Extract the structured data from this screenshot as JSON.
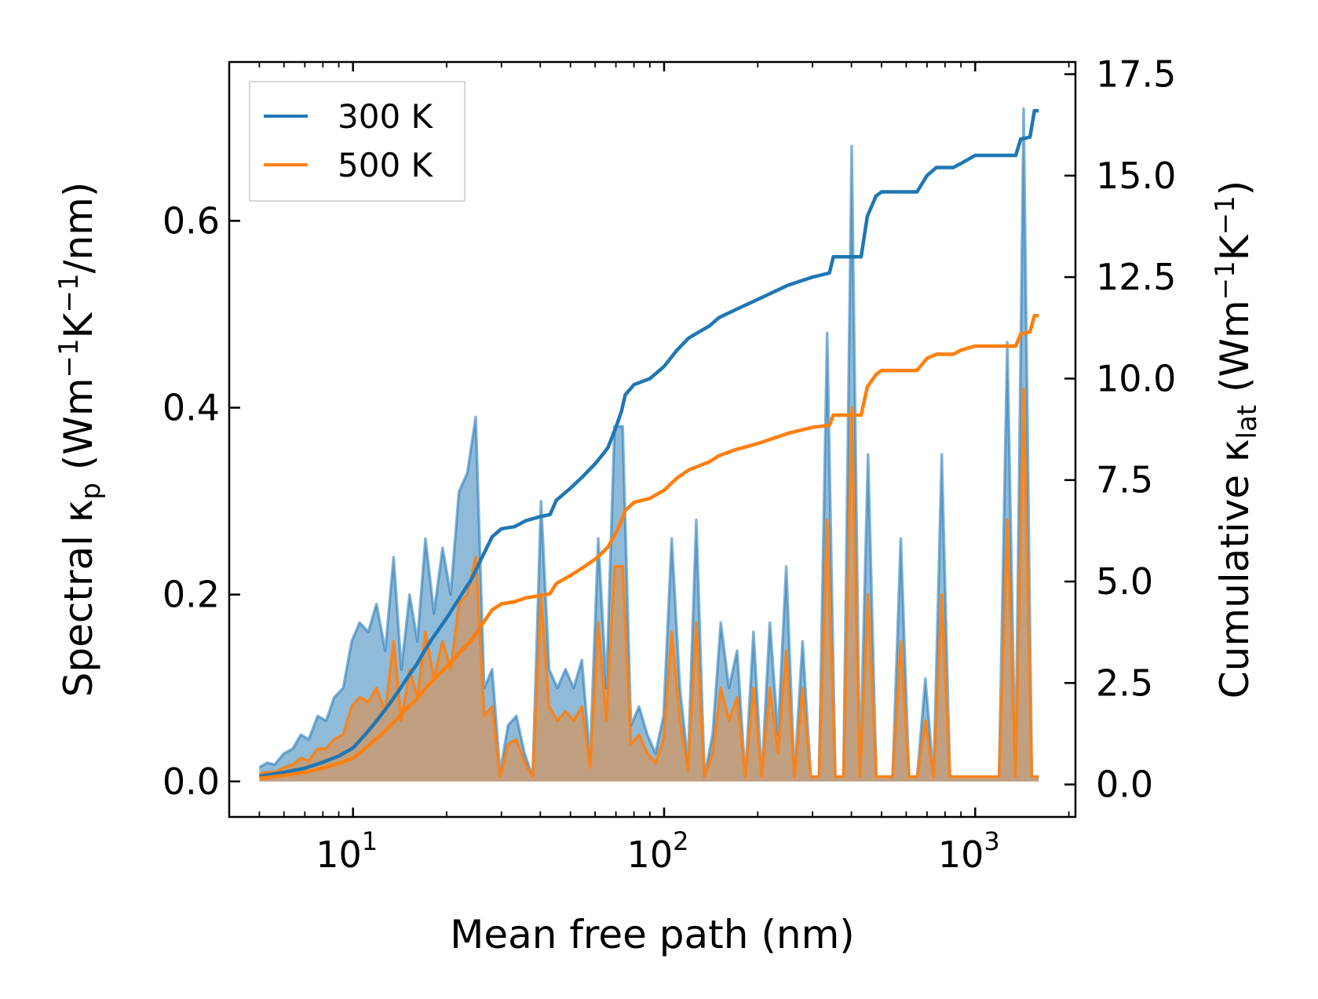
{
  "chart_data": {
    "type": "line",
    "xlabel": "Mean free path (nm)",
    "ylabel_left": "Spectral κp (Wm⁻¹K⁻¹/nm)",
    "ylabel_right": "Cumulative κlat (Wm⁻¹K⁻¹)",
    "xscale": "log",
    "xlim": [
      4.0,
      2100
    ],
    "ylim_left": [
      -0.038,
      0.77
    ],
    "ylim_right": [
      -0.8,
      17.8
    ],
    "x_ticks": [
      10,
      100,
      1000
    ],
    "x_ticklabels": [
      {
        "base": "10",
        "exp": "1"
      },
      {
        "base": "10",
        "exp": "2"
      },
      {
        "base": "10",
        "exp": "3"
      }
    ],
    "y_ticks_left": [
      0.0,
      0.2,
      0.4,
      0.6
    ],
    "y_ticklabels_left": [
      "0.0",
      "0.2",
      "0.4",
      "0.6"
    ],
    "y_ticks_right": [
      0.0,
      2.5,
      5.0,
      7.5,
      10.0,
      12.5,
      15.0,
      17.5
    ],
    "y_ticklabels_right": [
      "0.0",
      "2.5",
      "5.0",
      "7.5",
      "10.0",
      "12.5",
      "15.0",
      "17.5"
    ],
    "legend_position": "top-left",
    "series": [
      {
        "name": "300 K",
        "color": "#1f77b4",
        "cumulative": {
          "x": [
            5,
            6,
            7,
            8,
            9,
            10,
            11,
            12,
            13,
            14,
            15,
            16,
            17,
            18,
            20,
            22,
            24,
            26,
            28,
            30,
            33,
            36,
            40,
            43,
            45,
            50,
            55,
            60,
            63,
            66,
            70,
            73,
            75,
            80,
            90,
            100,
            110,
            120,
            140,
            150,
            170,
            200,
            250,
            300,
            340,
            350,
            430,
            450,
            480,
            500,
            650,
            700,
            750,
            850,
            900,
            1000,
            1350,
            1400,
            1500,
            1550,
            1600
          ],
          "y": [
            0.2,
            0.3,
            0.4,
            0.55,
            0.7,
            0.9,
            1.25,
            1.6,
            1.95,
            2.3,
            2.65,
            2.95,
            3.3,
            3.6,
            4.1,
            4.6,
            5.05,
            5.6,
            6.1,
            6.3,
            6.35,
            6.5,
            6.6,
            6.65,
            7.0,
            7.3,
            7.6,
            7.9,
            8.1,
            8.3,
            8.8,
            9.2,
            9.6,
            9.85,
            10.0,
            10.3,
            10.7,
            11.0,
            11.3,
            11.5,
            11.7,
            11.95,
            12.3,
            12.5,
            12.6,
            13.0,
            13.0,
            14.0,
            14.5,
            14.6,
            14.6,
            15.0,
            15.2,
            15.2,
            15.3,
            15.5,
            15.5,
            15.9,
            15.95,
            16.6,
            16.6
          ]
        },
        "spectral": {
          "x": [
            5,
            5.3,
            5.6,
            6,
            6.4,
            6.8,
            7.2,
            7.7,
            8.2,
            8.7,
            9.3,
            9.9,
            10.5,
            11.2,
            11.9,
            12.7,
            13.5,
            14.3,
            15.2,
            16.1,
            17.1,
            18.2,
            19.4,
            20.6,
            21.9,
            23.3,
            24.8,
            26.4,
            28,
            29.7,
            31.5,
            33.5,
            35.6,
            37.8,
            40.2,
            42.7,
            45.4,
            48.2,
            51.2,
            54.4,
            57.8,
            61.4,
            65.2,
            69.3,
            73.6,
            78.2,
            83.1,
            88.3,
            93.8,
            99.6,
            105.8,
            112.4,
            119.4,
            126.9,
            134.8,
            143.2,
            152.1,
            161.6,
            171.7,
            182.4,
            193.8,
            205.9,
            218.7,
            232.4,
            246.9,
            262.3,
            278.7,
            296.1,
            314.6,
            334.2,
            355.1,
            377.3,
            400.9,
            425.9,
            452.5,
            480.8,
            510.8,
            542.7,
            576.6,
            612.6,
            650.9,
            691.6,
            734.8,
            780.7,
            829.5,
            881.3,
            936.4,
            994.9,
            1057,
            1123,
            1193,
            1268,
            1347,
            1431,
            1520,
            1600
          ],
          "y": [
            0.015,
            0.02,
            0.018,
            0.03,
            0.035,
            0.05,
            0.045,
            0.07,
            0.065,
            0.09,
            0.1,
            0.15,
            0.17,
            0.16,
            0.19,
            0.14,
            0.24,
            0.12,
            0.2,
            0.15,
            0.26,
            0.18,
            0.25,
            0.2,
            0.31,
            0.33,
            0.39,
            0.1,
            0.12,
            0.01,
            0.06,
            0.07,
            0.03,
            0.005,
            0.3,
            0.12,
            0.1,
            0.12,
            0.1,
            0.13,
            0.025,
            0.26,
            0.1,
            0.38,
            0.38,
            0.06,
            0.08,
            0.05,
            0.03,
            0.07,
            0.26,
            0.1,
            0.02,
            0.28,
            0.005,
            0.05,
            0.17,
            0.1,
            0.14,
            0.005,
            0.16,
            0.005,
            0.17,
            0.05,
            0.23,
            0.005,
            0.15,
            0.005,
            0.005,
            0.48,
            0.005,
            0.005,
            0.68,
            0.005,
            0.35,
            0.005,
            0.005,
            0.005,
            0.26,
            0.005,
            0.005,
            0.11,
            0.005,
            0.35,
            0.005,
            0.005,
            0.005,
            0.005,
            0.005,
            0.005,
            0.005,
            0.47,
            0.005,
            0.72,
            0.005,
            0.005
          ]
        }
      },
      {
        "name": "500 K",
        "color": "#ff7f0e",
        "cumulative": {
          "x": [
            5,
            6,
            7,
            8,
            9,
            10,
            11,
            12,
            13,
            14,
            15,
            16,
            17,
            18,
            20,
            22,
            24,
            26,
            28,
            30,
            33,
            36,
            40,
            43,
            45,
            50,
            55,
            60,
            63,
            66,
            70,
            73,
            75,
            80,
            90,
            100,
            110,
            120,
            140,
            150,
            170,
            200,
            250,
            300,
            340,
            350,
            430,
            450,
            480,
            500,
            650,
            700,
            750,
            850,
            900,
            1000,
            1350,
            1400,
            1500,
            1550,
            1600
          ],
          "y": [
            0.15,
            0.22,
            0.3,
            0.4,
            0.52,
            0.65,
            0.9,
            1.15,
            1.4,
            1.65,
            1.9,
            2.1,
            2.35,
            2.55,
            2.9,
            3.25,
            3.55,
            3.95,
            4.3,
            4.45,
            4.5,
            4.6,
            4.65,
            4.7,
            4.95,
            5.15,
            5.35,
            5.55,
            5.7,
            5.85,
            6.2,
            6.5,
            6.75,
            6.95,
            7.05,
            7.25,
            7.55,
            7.75,
            7.95,
            8.1,
            8.25,
            8.4,
            8.65,
            8.8,
            8.85,
            9.1,
            9.1,
            9.8,
            10.1,
            10.2,
            10.2,
            10.5,
            10.6,
            10.6,
            10.7,
            10.8,
            10.8,
            11.1,
            11.15,
            11.55,
            11.55
          ]
        },
        "spectral": {
          "x": [
            5,
            5.3,
            5.6,
            6,
            6.4,
            6.8,
            7.2,
            7.7,
            8.2,
            8.7,
            9.3,
            9.9,
            10.5,
            11.2,
            11.9,
            12.7,
            13.5,
            14.3,
            15.2,
            16.1,
            17.1,
            18.2,
            19.4,
            20.6,
            21.9,
            23.3,
            24.8,
            26.4,
            28,
            29.7,
            31.5,
            33.5,
            35.6,
            37.8,
            40.2,
            42.7,
            45.4,
            48.2,
            51.2,
            54.4,
            57.8,
            61.4,
            65.2,
            69.3,
            73.6,
            78.2,
            83.1,
            88.3,
            93.8,
            99.6,
            105.8,
            112.4,
            119.4,
            126.9,
            134.8,
            143.2,
            152.1,
            161.6,
            171.7,
            182.4,
            193.8,
            205.9,
            218.7,
            232.4,
            246.9,
            262.3,
            278.7,
            296.1,
            314.6,
            334.2,
            355.1,
            377.3,
            400.9,
            425.9,
            452.5,
            480.8,
            510.8,
            542.7,
            576.6,
            612.6,
            650.9,
            691.6,
            734.8,
            780.7,
            829.5,
            881.3,
            936.4,
            994.9,
            1057,
            1123,
            1193,
            1268,
            1347,
            1431,
            1520,
            1600
          ],
          "y": [
            0.008,
            0.01,
            0.01,
            0.015,
            0.018,
            0.025,
            0.022,
            0.035,
            0.035,
            0.045,
            0.05,
            0.08,
            0.09,
            0.085,
            0.1,
            0.075,
            0.15,
            0.065,
            0.12,
            0.09,
            0.16,
            0.11,
            0.15,
            0.12,
            0.19,
            0.2,
            0.24,
            0.07,
            0.08,
            0.005,
            0.04,
            0.045,
            0.02,
            0.005,
            0.2,
            0.08,
            0.065,
            0.075,
            0.065,
            0.08,
            0.015,
            0.17,
            0.065,
            0.23,
            0.23,
            0.04,
            0.05,
            0.03,
            0.02,
            0.045,
            0.16,
            0.065,
            0.012,
            0.17,
            0.005,
            0.03,
            0.1,
            0.065,
            0.09,
            0.005,
            0.1,
            0.005,
            0.1,
            0.03,
            0.14,
            0.005,
            0.1,
            0.005,
            0.005,
            0.28,
            0.005,
            0.005,
            0.4,
            0.005,
            0.2,
            0.005,
            0.005,
            0.005,
            0.15,
            0.005,
            0.005,
            0.065,
            0.005,
            0.2,
            0.005,
            0.005,
            0.005,
            0.005,
            0.005,
            0.005,
            0.005,
            0.28,
            0.005,
            0.42,
            0.005,
            0.005
          ]
        }
      }
    ]
  }
}
